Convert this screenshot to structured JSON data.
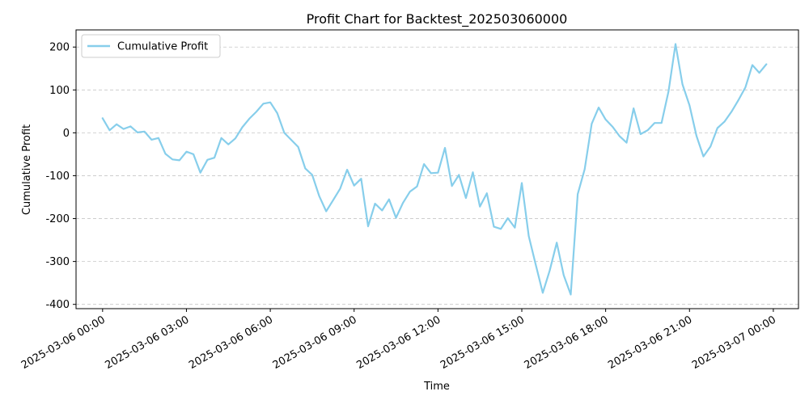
{
  "chart_data": {
    "type": "line",
    "title": "Profit Chart for Backtest_202503060000",
    "xlabel": "Time",
    "ylabel": "Cumulative Profit",
    "ylim": [
      -410,
      240
    ],
    "yticks": [
      -400,
      -300,
      -200,
      -100,
      0,
      100,
      200
    ],
    "xlim_hours": [
      -0.95,
      24.9
    ],
    "xticks": [
      {
        "label": "2025-03-06 00:00",
        "hour": 0
      },
      {
        "label": "2025-03-06 03:00",
        "hour": 3
      },
      {
        "label": "2025-03-06 06:00",
        "hour": 6
      },
      {
        "label": "2025-03-06 09:00",
        "hour": 9
      },
      {
        "label": "2025-03-06 12:00",
        "hour": 12
      },
      {
        "label": "2025-03-06 15:00",
        "hour": 15
      },
      {
        "label": "2025-03-06 18:00",
        "hour": 18
      },
      {
        "label": "2025-03-06 21:00",
        "hour": 21
      },
      {
        "label": "2025-03-07 00:00",
        "hour": 24
      }
    ],
    "grid": "y-dashed",
    "legend_position": "top-left",
    "series": [
      {
        "name": "Cumulative Profit",
        "color": "#87ceeb",
        "x": [
          0.0,
          0.25,
          0.5,
          0.75,
          1.0,
          1.25,
          1.5,
          1.75,
          2.0,
          2.25,
          2.5,
          2.75,
          3.0,
          3.25,
          3.5,
          3.75,
          4.0,
          4.25,
          4.5,
          4.75,
          5.0,
          5.25,
          5.5,
          5.75,
          6.0,
          6.25,
          6.5,
          7.0,
          7.25,
          7.5,
          7.75,
          8.0,
          8.25,
          8.5,
          8.75,
          9.0,
          9.25,
          9.5,
          9.75,
          10.0,
          10.25,
          10.5,
          10.75,
          11.0,
          11.25,
          11.5,
          11.75,
          12.0,
          12.25,
          12.5,
          12.75,
          13.0,
          13.25,
          13.5,
          13.75,
          14.0,
          14.25,
          14.5,
          14.75,
          15.0,
          15.25,
          15.5,
          15.75,
          16.0,
          16.25,
          16.5,
          16.75,
          17.0,
          17.25,
          17.5,
          17.75,
          18.0,
          18.25,
          18.5,
          18.75,
          19.0,
          19.25,
          19.5,
          19.75,
          20.0,
          20.25,
          20.5,
          20.75,
          21.0,
          21.25,
          21.5,
          21.75,
          22.0,
          22.25,
          22.5,
          22.75,
          23.0,
          23.25,
          23.5,
          23.75
        ],
        "y": [
          34,
          6,
          20,
          9,
          15,
          1,
          3,
          -16,
          -12,
          -49,
          -62,
          -64,
          -44,
          -50,
          -93,
          -63,
          -58,
          -12,
          -27,
          -13,
          13,
          33,
          49,
          68,
          71,
          46,
          0,
          -33,
          -83,
          -98,
          -147,
          -183,
          -157,
          -130,
          -86,
          -123,
          -107,
          -218,
          -165,
          -181,
          -155,
          -198,
          -163,
          -137,
          -125,
          -73,
          -94,
          -93,
          -35,
          -124,
          -98,
          -152,
          -92,
          -172,
          -141,
          -219,
          -224,
          -199,
          -221,
          -117,
          -241,
          -308,
          -373,
          -321,
          -256,
          -332,
          -377,
          -143,
          -85,
          21,
          59,
          31,
          14,
          -8,
          -23,
          57,
          -3,
          6,
          23,
          23,
          97,
          207,
          113,
          64,
          -7,
          -55,
          -32,
          11,
          26,
          49,
          76,
          106,
          158,
          140,
          160
        ]
      }
    ]
  }
}
